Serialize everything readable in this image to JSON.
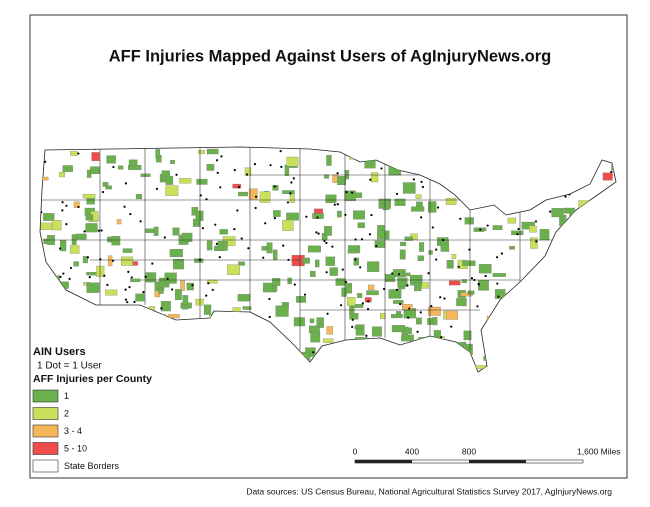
{
  "title": "AFF Injuries Mapped Against Users of AgInjuryNews.org",
  "legend": {
    "users_heading": "AIN Users",
    "users_note": "1 Dot = 1 User",
    "injuries_heading": "AFF Injuries per County",
    "items": [
      {
        "label": "1",
        "color": "#6ab04c"
      },
      {
        "label": "2",
        "color": "#c8e05a"
      },
      {
        "label": "3 - 4",
        "color": "#f5b75a"
      },
      {
        "label": "5 - 10",
        "color": "#f14c4c"
      },
      {
        "label": "State Borders",
        "color": "#ffffff"
      }
    ]
  },
  "scale_bar": {
    "labels": [
      "0",
      "400",
      "800",
      "1,600 Miles"
    ]
  },
  "source": "Data sources: US Census Bureau, National Agricultural Statistics Survey 2017, AgInjuryNews.org"
}
